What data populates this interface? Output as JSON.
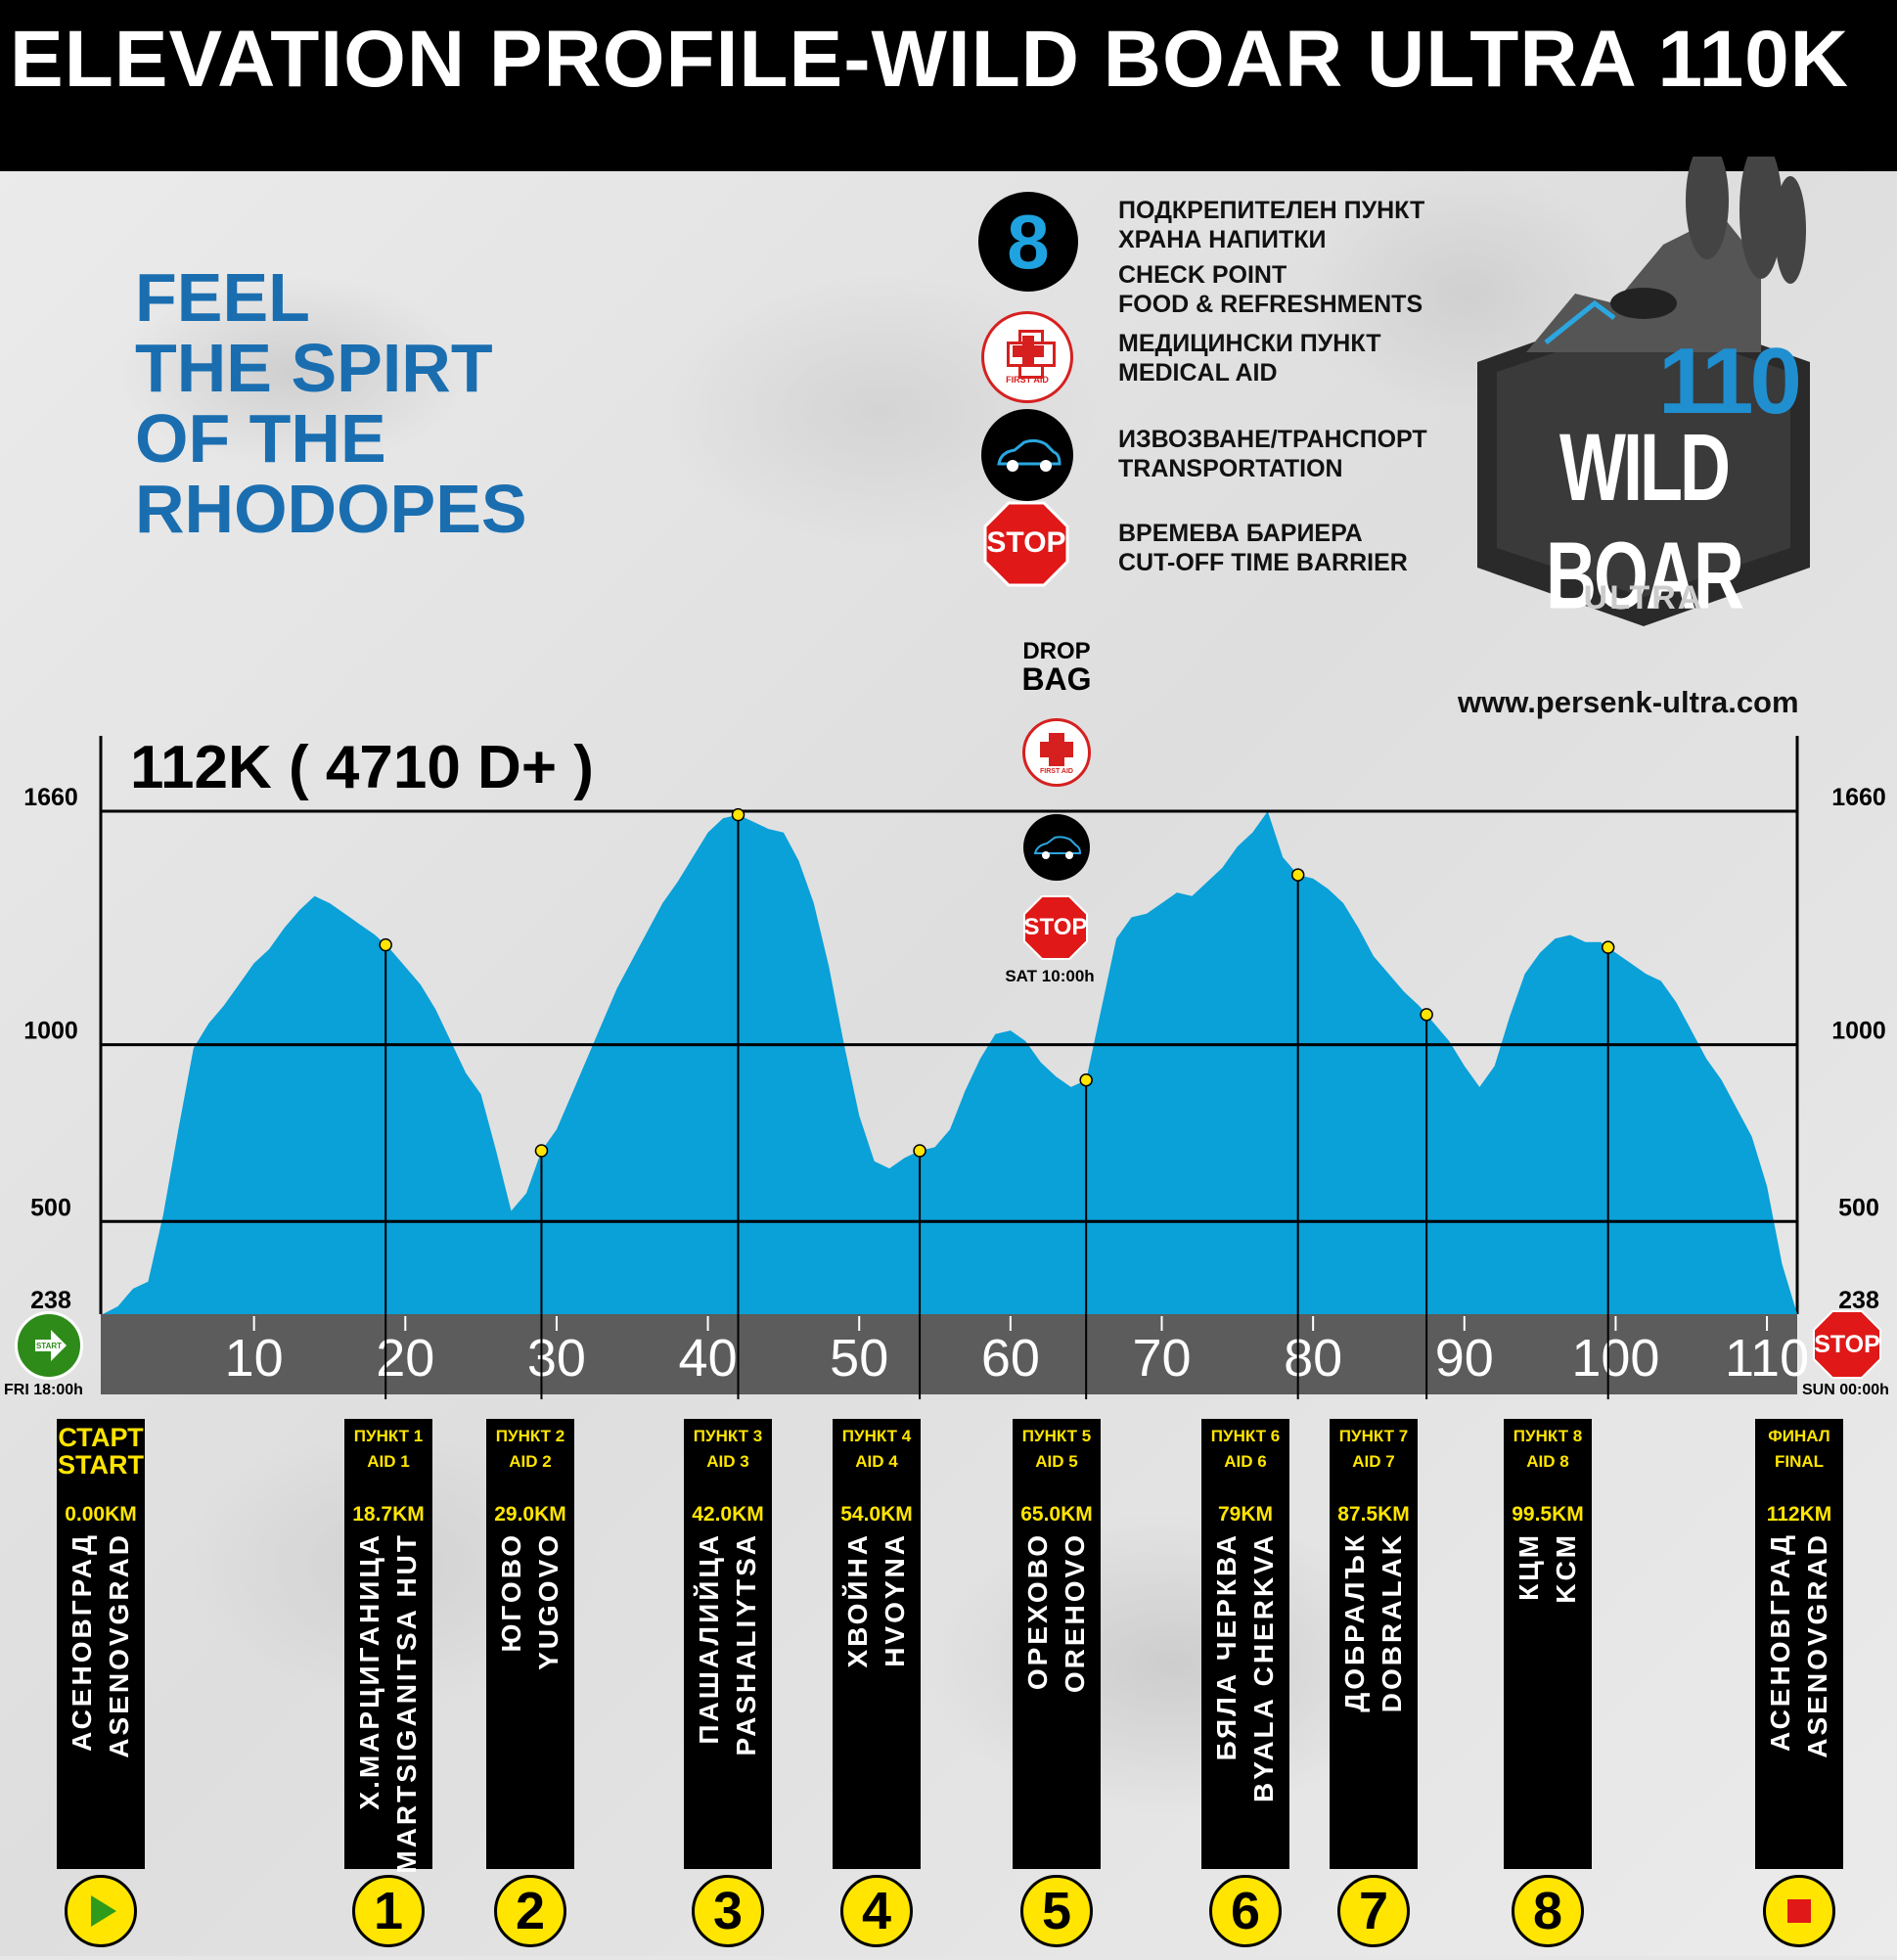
{
  "title": "ELEVATION PROFILE-WILD BOAR ULTRA 110K",
  "slogan": [
    "FEEL",
    "THE SPIRT",
    "OF THE",
    "RHODOPES"
  ],
  "legend": [
    {
      "icon": "8",
      "lines": [
        "ПОДКРЕПИТЕЛЕН ПУНКТ",
        "ХРАНА НАПИТКИ",
        "CHECK POINT",
        "FOOD & REFRESHMENTS"
      ]
    },
    {
      "icon": "first-aid-icon",
      "icon_text": "FIRST AID",
      "lines": [
        "МЕДИЦИНСКИ ПУНКТ",
        "MEDICAL AID"
      ]
    },
    {
      "icon": "car-icon",
      "lines": [
        "ИЗВОЗВАНЕ/ТРАНСПОРТ",
        "TRANSPORTATION"
      ]
    },
    {
      "icon": "stop-icon",
      "icon_text": "STOP",
      "lines": [
        "ВРЕМЕВА БАРИЕРА",
        "CUT-OFF TIME BARRIER"
      ]
    }
  ],
  "logo": {
    "number": "110",
    "name": "WILD BOAR",
    "sub": "ULTRA"
  },
  "url": "www.persenk-ultra.com",
  "drop_bag": {
    "line1": "DROP",
    "line2": "BAG",
    "first_aid": "FIRST AID",
    "stop": "STOP",
    "time": "SAT 10:00h"
  },
  "start": {
    "icon_text": "START",
    "time": "FRI 18:00h"
  },
  "finish": {
    "icon_text": "STOP",
    "time": "SUN 00:00h"
  },
  "colors": {
    "profile": "#0aa0d8",
    "yellow": "#ffe500",
    "blue_text": "#1a6eb0"
  },
  "chart_data": {
    "type": "area",
    "title": "112K ( 4710 D+ )",
    "xlabel": "",
    "ylabel": "",
    "xlim": [
      0,
      112
    ],
    "ylim": [
      238,
      1660
    ],
    "y_ticks": [
      238,
      500,
      1000,
      1660
    ],
    "x_ticks": [
      10,
      20,
      30,
      40,
      50,
      60,
      70,
      80,
      90,
      100,
      110
    ],
    "grid_lines": [
      500,
      1000,
      1660
    ],
    "profile": {
      "x": [
        0,
        1,
        2,
        3,
        4,
        5,
        6,
        7,
        8,
        9,
        10,
        11,
        12,
        13,
        14,
        15,
        16,
        17,
        18,
        19,
        20,
        21,
        22,
        23,
        24,
        25,
        26,
        27,
        28,
        29,
        30,
        31,
        32,
        33,
        34,
        35,
        36,
        37,
        38,
        39,
        40,
        41,
        42,
        43,
        44,
        45,
        46,
        47,
        48,
        49,
        50,
        51,
        52,
        53,
        54,
        55,
        56,
        57,
        58,
        59,
        60,
        61,
        62,
        63,
        64,
        65,
        66,
        67,
        68,
        69,
        70,
        71,
        72,
        73,
        74,
        75,
        76,
        77,
        78,
        79,
        80,
        81,
        82,
        83,
        84,
        85,
        86,
        87,
        88,
        89,
        90,
        91,
        92,
        93,
        94,
        95,
        96,
        97,
        98,
        99,
        100,
        101,
        102,
        103,
        104,
        105,
        106,
        107,
        108,
        109,
        110,
        111,
        112
      ],
      "y": [
        238,
        260,
        310,
        330,
        520,
        760,
        990,
        1060,
        1110,
        1170,
        1230,
        1270,
        1330,
        1380,
        1420,
        1400,
        1370,
        1340,
        1310,
        1270,
        1220,
        1170,
        1100,
        1010,
        920,
        860,
        700,
        530,
        580,
        700,
        760,
        860,
        960,
        1060,
        1160,
        1240,
        1320,
        1400,
        1460,
        1530,
        1600,
        1640,
        1650,
        1630,
        1610,
        1600,
        1520,
        1400,
        1220,
        1000,
        800,
        670,
        650,
        680,
        700,
        710,
        760,
        870,
        960,
        1030,
        1040,
        1010,
        950,
        910,
        880,
        900,
        1100,
        1300,
        1360,
        1370,
        1400,
        1430,
        1420,
        1460,
        1500,
        1560,
        1600,
        1660,
        1530,
        1480,
        1470,
        1440,
        1400,
        1330,
        1250,
        1200,
        1150,
        1110,
        1060,
        1010,
        940,
        880,
        940,
        1080,
        1200,
        1260,
        1300,
        1310,
        1290,
        1290,
        1260,
        1230,
        1200,
        1180,
        1120,
        1040,
        960,
        900,
        820,
        740,
        600,
        380,
        238
      ]
    },
    "points": [
      {
        "km": 0.0,
        "label": "START"
      },
      {
        "km": 18.7,
        "label": "AID 1"
      },
      {
        "km": 29.0,
        "label": "AID 2"
      },
      {
        "km": 42.0,
        "label": "AID 3"
      },
      {
        "km": 54.0,
        "label": "AID 4"
      },
      {
        "km": 65.0,
        "label": "AID 5"
      },
      {
        "km": 79,
        "label": "AID 6"
      },
      {
        "km": 87.5,
        "label": "AID 7"
      },
      {
        "km": 99.5,
        "label": "AID 8"
      },
      {
        "km": 112,
        "label": "FINAL"
      }
    ]
  },
  "stations": [
    {
      "head1": "СТАРТ",
      "head2": "START",
      "km": "0.00KM",
      "bg": "АСЕНОВГРАД",
      "en": "ASENOVGRAD",
      "badge": "start"
    },
    {
      "head1": "ПУНКТ 1",
      "head2": "AID 1",
      "km": "18.7KM",
      "bg": "Х.МАРЦИГАНИЦА",
      "en": "MARTSIGANITSA HUT",
      "badge": "1"
    },
    {
      "head1": "ПУНКТ 2",
      "head2": "AID 2",
      "km": "29.0KM",
      "bg": "ЮГОВО",
      "en": "YUGOVO",
      "badge": "2"
    },
    {
      "head1": "ПУНКТ 3",
      "head2": "AID 3",
      "km": "42.0KM",
      "bg": "ПАШАЛИЙЦА",
      "en": "PASHALIYTSA",
      "badge": "3"
    },
    {
      "head1": "ПУНКТ 4",
      "head2": "AID 4",
      "km": "54.0KM",
      "bg": "ХВОЙНА",
      "en": "HVOYNA",
      "badge": "4"
    },
    {
      "head1": "ПУНКТ 5",
      "head2": "AID 5",
      "km": "65.0KM",
      "bg": "ОРЕХОВО",
      "en": "OREHOVO",
      "badge": "5"
    },
    {
      "head1": "ПУНКТ 6",
      "head2": "AID 6",
      "km": "79KM",
      "bg": "БЯЛА ЧЕРКВА",
      "en": "BYALA CHERKVA",
      "badge": "6"
    },
    {
      "head1": "ПУНКТ 7",
      "head2": "AID 7",
      "km": "87.5KM",
      "bg": "ДОБРАЛЪК",
      "en": "DOBRALAK",
      "badge": "7"
    },
    {
      "head1": "ПУНКТ 8",
      "head2": "AID 8",
      "km": "99.5KM",
      "bg": "КЦМ",
      "en": "KCM",
      "badge": "8"
    },
    {
      "head1": "ФИНАЛ",
      "head2": "FINAL",
      "km": "112KM",
      "bg": "АСЕНОВГРАД",
      "en": "ASENOVGRAD",
      "badge": "finish"
    }
  ]
}
